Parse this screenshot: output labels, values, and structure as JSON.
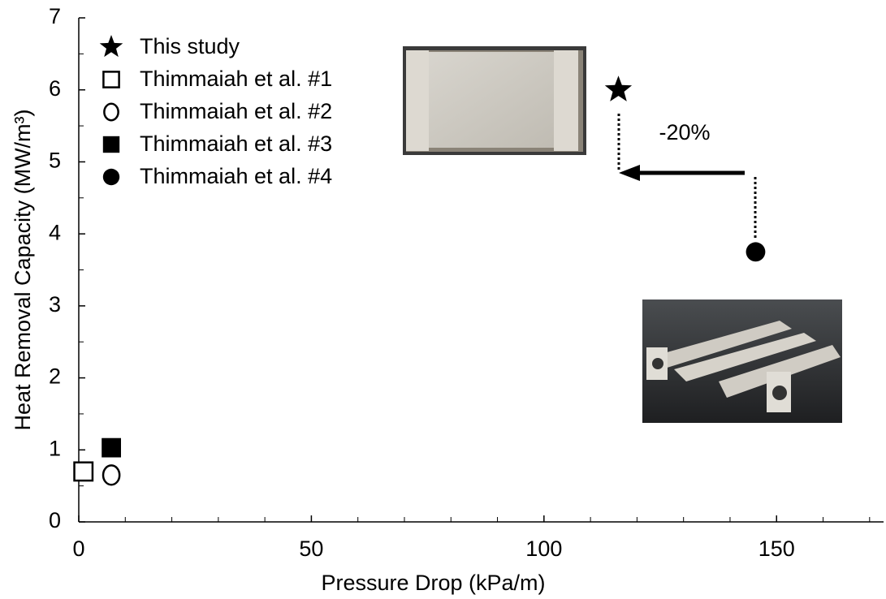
{
  "chart_data": {
    "type": "scatter",
    "xlabel": "Pressure Drop (kPa/m)",
    "ylabel": "Heat Removal Capacity (MW/m³)",
    "xlim": [
      0,
      173
    ],
    "ylim": [
      0,
      7
    ],
    "xticks": [
      0,
      50,
      100,
      150
    ],
    "yticks": [
      0,
      1,
      2,
      3,
      4,
      5,
      6,
      7
    ],
    "xminorticks": [
      10,
      20,
      30,
      40,
      60,
      70,
      80,
      90,
      110,
      120,
      130,
      140,
      160,
      170
    ],
    "yminorticks": [
      0.5,
      1.5,
      2.5,
      3.5,
      4.5,
      5.5,
      6.5
    ],
    "legend": "upper left",
    "annotations": [
      "-20%"
    ],
    "series": [
      {
        "name": "This study",
        "marker": "star",
        "color": "#000000",
        "x": [
          116
        ],
        "y": [
          6.0
        ]
      },
      {
        "name": "Thimmaiah et al. #1",
        "marker": "open-square",
        "color": "#000000",
        "x": [
          1
        ],
        "y": [
          0.7
        ]
      },
      {
        "name": "Thimmaiah et al. #2",
        "marker": "open-circle",
        "color": "#000000",
        "x": [
          7
        ],
        "y": [
          0.65
        ]
      },
      {
        "name": "Thimmaiah et al. #3",
        "marker": "filled-square",
        "color": "#000000",
        "x": [
          7
        ],
        "y": [
          1.03
        ]
      },
      {
        "name": "Thimmaiah et al. #4",
        "marker": "filled-circle",
        "color": "#000000",
        "x": [
          145.5
        ],
        "y": [
          3.75
        ]
      }
    ]
  }
}
